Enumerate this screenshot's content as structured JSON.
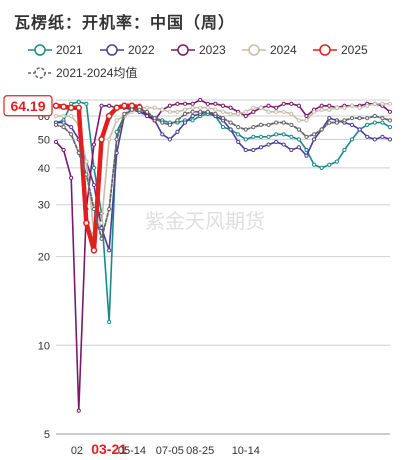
{
  "chart_data": {
    "type": "line",
    "title": "瓦楞纸：开机率：中国（周）",
    "watermark": "紫金天风期货",
    "ylim": [
      5,
      68
    ],
    "yticks": [
      5,
      10,
      20,
      30,
      40,
      50,
      60,
      68
    ],
    "y_scale": "log",
    "x_tick_labels": [
      "02-",
      "03-21",
      "05-14",
      "07-05",
      "08-25",
      "10-14"
    ],
    "highlight_x_label": "03-21",
    "grid": true,
    "legend_position": "top",
    "last_value_label": "64.19",
    "series": [
      {
        "name": "2021",
        "color": "#1a8a8a",
        "values": [
          57,
          58,
          66,
          67,
          66,
          40,
          28,
          12,
          53,
          60,
          63,
          62,
          60,
          59,
          58,
          57,
          57,
          58,
          58,
          60,
          61,
          60,
          55,
          54,
          52,
          50,
          51,
          51,
          51,
          52,
          52,
          51,
          50,
          46,
          41,
          40,
          41,
          42,
          46,
          50,
          54,
          56,
          57,
          57,
          55
        ]
      },
      {
        "name": "2022",
        "color": "#4b3f9b",
        "values": [
          57,
          57,
          55,
          50,
          42,
          35,
          25,
          21,
          45,
          60,
          63,
          62,
          61,
          58,
          52,
          50,
          53,
          57,
          60,
          61,
          62,
          60,
          58,
          54,
          49,
          46,
          46,
          47,
          48,
          49,
          48,
          46,
          47,
          44,
          50,
          54,
          59,
          58,
          57,
          56,
          54,
          51,
          50,
          51,
          50
        ]
      },
      {
        "name": "2023",
        "color": "#7a1a6c",
        "values": [
          49,
          46,
          37,
          6,
          29,
          48,
          65,
          65,
          64,
          64,
          63,
          65,
          60,
          58,
          63,
          65,
          66,
          66,
          66,
          68,
          66,
          66,
          65,
          64,
          62,
          60,
          62,
          64,
          65,
          64,
          66,
          66,
          65,
          60,
          63,
          65,
          65,
          64,
          65,
          65,
          65,
          66,
          66,
          65,
          62
        ]
      },
      {
        "name": "2024",
        "color": "#c8beaa",
        "values": [
          60,
          60,
          60,
          56,
          42,
          24,
          26,
          50,
          58,
          60,
          62,
          64,
          64,
          64,
          63,
          62,
          62,
          63,
          64,
          64,
          64,
          63,
          62,
          61,
          61,
          62,
          64,
          64,
          62,
          62,
          62,
          61,
          58,
          58,
          62,
          63,
          63,
          64,
          64,
          65,
          64,
          65,
          66,
          66,
          66
        ]
      },
      {
        "name": "2025",
        "color": "#e02020",
        "values": [
          65,
          64.5,
          64,
          64,
          26,
          21,
          50,
          60,
          64,
          65,
          65,
          64.19
        ]
      },
      {
        "name": "2021-2024均值",
        "color": "#666666",
        "dashed": true,
        "values": [
          56,
          55,
          52,
          45,
          38,
          29,
          23,
          29,
          50,
          61,
          63,
          63,
          62,
          59,
          57,
          56,
          58,
          61,
          62,
          62,
          62,
          61,
          59,
          57,
          55,
          54,
          55,
          56,
          56,
          57,
          57,
          56,
          54,
          51,
          52,
          54,
          57,
          57,
          58,
          59,
          59,
          59,
          60,
          59,
          58
        ]
      }
    ]
  }
}
